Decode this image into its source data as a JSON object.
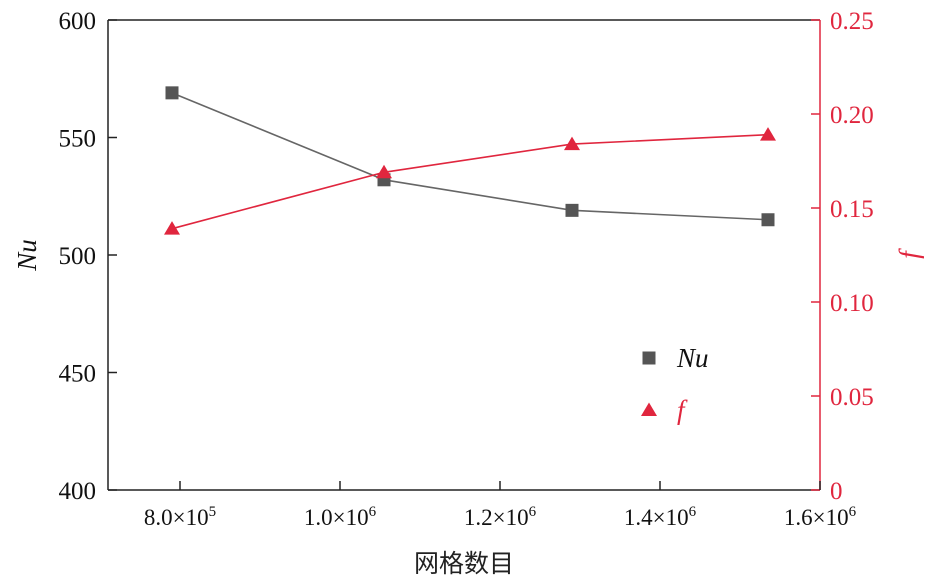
{
  "chart_data": {
    "type": "line",
    "xlabel": "网格数目",
    "x": [
      790000,
      1055000,
      1290000,
      1535000
    ],
    "x_range": [
      710000,
      1600000
    ],
    "x_ticks": [
      800000,
      1000000,
      1200000,
      1400000,
      1600000
    ],
    "x_tick_labels": [
      {
        "mantissa": "8.0×10",
        "exp": "5"
      },
      {
        "mantissa": "1.0×10",
        "exp": "6"
      },
      {
        "mantissa": "1.2×10",
        "exp": "6"
      },
      {
        "mantissa": "1.4×10",
        "exp": "6"
      },
      {
        "mantissa": "1.6×10",
        "exp": "6"
      }
    ],
    "y_left": {
      "label": "Nu",
      "range": [
        400,
        600
      ],
      "ticks": [
        400,
        450,
        500,
        550,
        600
      ],
      "tick_labels": [
        "400",
        "450",
        "500",
        "550",
        "600"
      ]
    },
    "y_right": {
      "label": "f",
      "range": [
        0,
        0.25
      ],
      "ticks": [
        0,
        0.05,
        0.1,
        0.15,
        0.2,
        0.25
      ],
      "tick_labels": [
        "0",
        "0.05",
        "0.10",
        "0.15",
        "0.20",
        "0.25"
      ]
    },
    "series": [
      {
        "name": "Nu",
        "axis": "left",
        "marker": "square",
        "color": "#555555",
        "line_color": "#666666",
        "values": [
          569,
          532,
          519,
          515
        ]
      },
      {
        "name": "f",
        "axis": "right",
        "marker": "triangle",
        "color": "#e0263e",
        "line_color": "#e0263e",
        "values": [
          0.139,
          0.169,
          0.184,
          0.189
        ]
      }
    ],
    "legend": {
      "placement": "lower-right",
      "entries": [
        "Nu",
        "f"
      ]
    },
    "grid": false,
    "right_axis_color": "#e0263e"
  }
}
